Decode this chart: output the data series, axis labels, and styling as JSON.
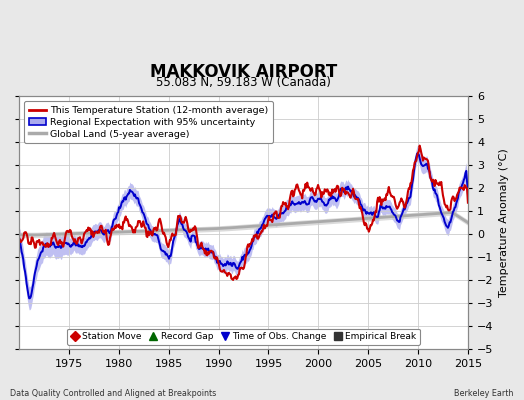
{
  "title": "MAKKOVIK AIRPORT",
  "subtitle": "55.083 N, 59.183 W (Canada)",
  "ylabel": "Temperature Anomaly (°C)",
  "xlabel_bottom_left": "Data Quality Controlled and Aligned at Breakpoints",
  "xlabel_bottom_right": "Berkeley Earth",
  "ylim": [
    -5,
    6
  ],
  "xlim": [
    1970,
    2015
  ],
  "xticks": [
    1975,
    1980,
    1985,
    1990,
    1995,
    2000,
    2005,
    2010,
    2015
  ],
  "yticks": [
    -5,
    -4,
    -3,
    -2,
    -1,
    0,
    1,
    2,
    3,
    4,
    5,
    6
  ],
  "background_color": "#e8e8e8",
  "plot_bg_color": "#ffffff",
  "grid_color": "#cccccc",
  "red_line_color": "#cc0000",
  "blue_line_color": "#0000cc",
  "blue_fill_color": "#aaaaee",
  "gray_line_color": "#aaaaaa",
  "gray_fill_color": "#cccccc",
  "legend1_labels": [
    "This Temperature Station (12-month average)",
    "Regional Expectation with 95% uncertainty",
    "Global Land (5-year average)"
  ],
  "legend2_labels": [
    "Station Move",
    "Record Gap",
    "Time of Obs. Change",
    "Empirical Break"
  ],
  "legend2_colors": [
    "#cc0000",
    "#006600",
    "#0000cc",
    "#333333"
  ],
  "legend2_markers": [
    "D",
    "^",
    "v",
    "s"
  ]
}
